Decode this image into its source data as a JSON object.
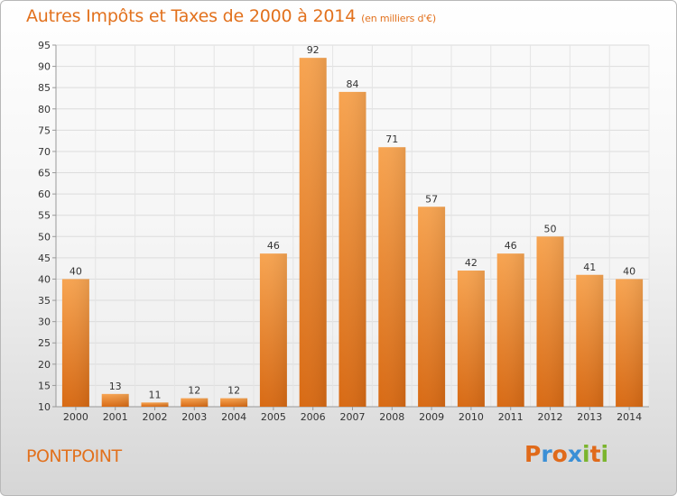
{
  "title": "Autres Impôts et Taxes de 2000 à 2014",
  "subtitle": "(en milliers d'€)",
  "commune": "PONTPOINT",
  "logo": {
    "letters": [
      "P",
      "r",
      "o",
      "x",
      "i",
      "t",
      "i"
    ],
    "colors": [
      "#e06a1a",
      "#3a8fd6",
      "#e06a1a",
      "#3a8fd6",
      "#7bb52e",
      "#e06a1a",
      "#7bb52e"
    ]
  },
  "chart_data": {
    "type": "bar",
    "title": "Autres Impôts et Taxes de 2000 à 2014",
    "ylim": [
      10,
      95
    ],
    "yticks": [
      10,
      15,
      20,
      25,
      30,
      35,
      40,
      45,
      50,
      55,
      60,
      65,
      70,
      75,
      80,
      85,
      90,
      95
    ],
    "categories": [
      "2000",
      "2001",
      "2002",
      "2003",
      "2004",
      "2005",
      "2006",
      "2007",
      "2008",
      "2009",
      "2010",
      "2011",
      "2012",
      "2013",
      "2014"
    ],
    "values": [
      40,
      13,
      11,
      12,
      12,
      46,
      92,
      84,
      71,
      57,
      42,
      46,
      50,
      41,
      40
    ],
    "grid": true,
    "bar_color": "#f09a45"
  }
}
